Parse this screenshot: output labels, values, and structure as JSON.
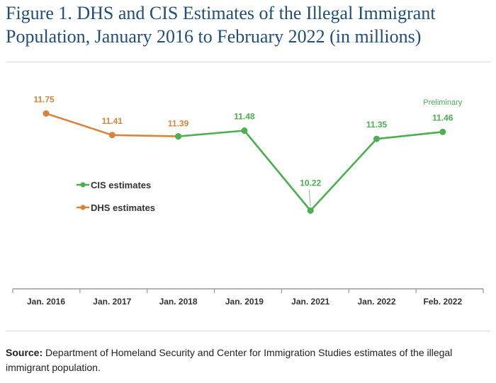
{
  "figure": {
    "title": "Figure 1. DHS and CIS Estimates of the Illegal Immigrant Population, January 2016 to February 2022 (in millions)",
    "source_label": "Source:",
    "source_text": " Department of Homeland Security and Center for Immigration Studies estimates of the illegal immigrant population."
  },
  "chart_data": {
    "type": "line",
    "categories": [
      "Jan. 2016",
      "Jan. 2017",
      "Jan. 2018",
      "Jan. 2019",
      "Jan. 2021",
      "Jan. 2022",
      "Feb. 2022"
    ],
    "series": [
      {
        "name": "DHS estimates",
        "color": "#d9833b",
        "values": [
          11.75,
          11.41,
          11.39,
          null,
          null,
          null,
          null
        ],
        "labels": [
          "11.75",
          "11.41",
          "11.39",
          null,
          null,
          null,
          null
        ]
      },
      {
        "name": "CIS estimates",
        "color": "#4caf50",
        "values": [
          null,
          null,
          11.39,
          11.48,
          10.22,
          11.35,
          11.46
        ],
        "labels": [
          null,
          null,
          null,
          "11.48",
          "10.22",
          "11.35",
          "11.46"
        ]
      }
    ],
    "annotations": [
      {
        "text": "Preliminary",
        "category": "Feb. 2022",
        "color": "#4caf50"
      }
    ],
    "ylim": [
      9.5,
      12.0
    ],
    "grid": false,
    "legend_position": "middle-left"
  }
}
